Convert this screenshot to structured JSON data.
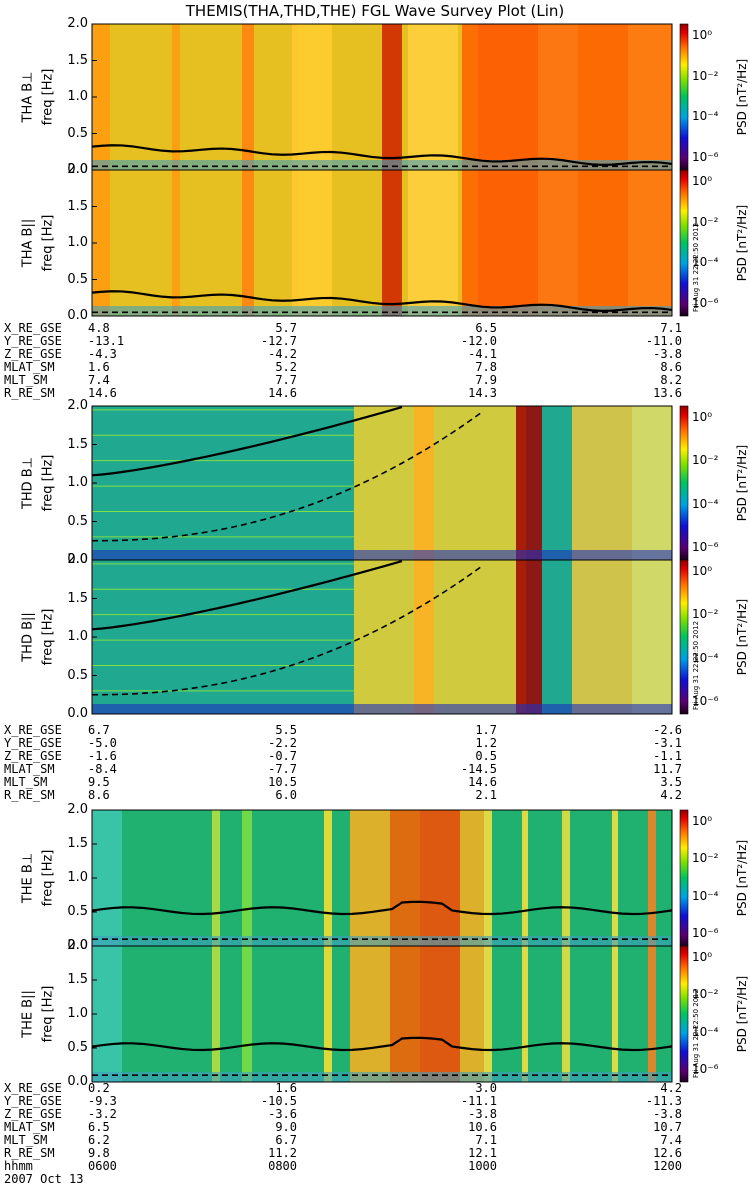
{
  "title": "THEMIS(THA,THD,THE) FGL Wave Survey Plot (Lin)",
  "colorbar": {
    "label": "PSD [nT²/Hz]",
    "ticks": [
      "10⁰",
      "10⁻²",
      "10⁻⁴",
      "10⁻⁶"
    ]
  },
  "colors": {
    "background": "#ffffff",
    "scale_low": "#5a0060",
    "scale_mid": "#33cc33",
    "scale_high": "#a00000"
  },
  "stamp": "Fri Aug 31 22:22:50 2012",
  "chart_data": [
    {
      "type": "heatmap",
      "probe": "THA",
      "panels": [
        {
          "ylabel_top": "THA B⊥",
          "ylabel_bottom": "freq [Hz]",
          "ylim": [
            0,
            2.0
          ],
          "yticks": [
            "0.0",
            "0.5",
            "1.0",
            "1.5",
            "2.0"
          ]
        },
        {
          "ylabel_top": "THA B||",
          "ylabel_bottom": "freq [Hz]",
          "ylim": [
            0,
            2.0
          ],
          "yticks": [
            "0.0",
            "0.5",
            "1.0",
            "1.5",
            "2.0"
          ]
        }
      ],
      "ephemeris": {
        "labels": [
          "X_RE_GSE",
          "Y_RE_GSE",
          "Z_RE_GSE",
          "MLAT_SM",
          "MLT_SM",
          "R_RE_SM"
        ],
        "rows": [
          [
            "4.8",
            "5.7",
            "6.5",
            "7.1"
          ],
          [
            "-13.1",
            "-12.7",
            "-12.0",
            "-11.0"
          ],
          [
            "-4.3",
            "-4.2",
            "-4.1",
            "-3.8"
          ],
          [
            "1.6",
            "5.2",
            "7.8",
            "8.6"
          ],
          [
            "7.4",
            "7.7",
            "7.9",
            "8.2"
          ],
          [
            "14.6",
            "14.6",
            "14.3",
            "13.6"
          ]
        ]
      }
    },
    {
      "type": "heatmap",
      "probe": "THD",
      "panels": [
        {
          "ylabel_top": "THD B⊥",
          "ylabel_bottom": "freq [Hz]",
          "ylim": [
            0,
            2.0
          ],
          "yticks": [
            "0.0",
            "0.5",
            "1.0",
            "1.5",
            "2.0"
          ]
        },
        {
          "ylabel_top": "THD B||",
          "ylabel_bottom": "freq [Hz]",
          "ylim": [
            0,
            2.0
          ],
          "yticks": [
            "0.0",
            "0.5",
            "1.0",
            "1.5",
            "2.0"
          ]
        }
      ],
      "ephemeris": {
        "labels": [
          "X_RE_GSE",
          "Y_RE_GSE",
          "Z_RE_GSE",
          "MLAT_SM",
          "MLT_SM",
          "R_RE_SM"
        ],
        "rows": [
          [
            "6.7",
            "5.5",
            "1.7",
            "-2.6"
          ],
          [
            "-5.0",
            "-2.2",
            "1.2",
            "-3.1"
          ],
          [
            "-1.6",
            "-0.7",
            "0.5",
            "-1.1"
          ],
          [
            "-8.4",
            "-7.7",
            "-14.5",
            "11.7"
          ],
          [
            "9.5",
            "10.5",
            "14.6",
            "3.5"
          ],
          [
            "8.6",
            "6.0",
            "2.1",
            "4.2"
          ]
        ]
      }
    },
    {
      "type": "heatmap",
      "probe": "THE",
      "panels": [
        {
          "ylabel_top": "THE B⊥",
          "ylabel_bottom": "freq [Hz]",
          "ylim": [
            0,
            2.0
          ],
          "yticks": [
            "0.0",
            "0.5",
            "1.0",
            "1.5",
            "2.0"
          ]
        },
        {
          "ylabel_top": "THE B||",
          "ylabel_bottom": "freq [Hz]",
          "ylim": [
            0,
            2.0
          ],
          "yticks": [
            "0.0",
            "0.5",
            "1.0",
            "1.5",
            "2.0"
          ]
        }
      ],
      "ephemeris": {
        "labels": [
          "X_RE_GSE",
          "Y_RE_GSE",
          "Z_RE_GSE",
          "MLAT_SM",
          "MLT_SM",
          "R_RE_SM"
        ],
        "rows": [
          [
            "0.2",
            "1.6",
            "3.0",
            "4.2"
          ],
          [
            "-9.3",
            "-10.5",
            "-11.1",
            "-11.3"
          ],
          [
            "-3.2",
            "-3.6",
            "-3.8",
            "-3.8"
          ],
          [
            "6.5",
            "9.0",
            "10.6",
            "10.7"
          ],
          [
            "6.2",
            "6.7",
            "7.1",
            "7.4"
          ],
          [
            "9.8",
            "11.2",
            "12.1",
            "12.6"
          ]
        ]
      }
    }
  ],
  "time_axis": {
    "label": "hhmm",
    "date": "2007 Oct 13",
    "ticks": [
      "0600",
      "0800",
      "1000",
      "1200"
    ]
  }
}
